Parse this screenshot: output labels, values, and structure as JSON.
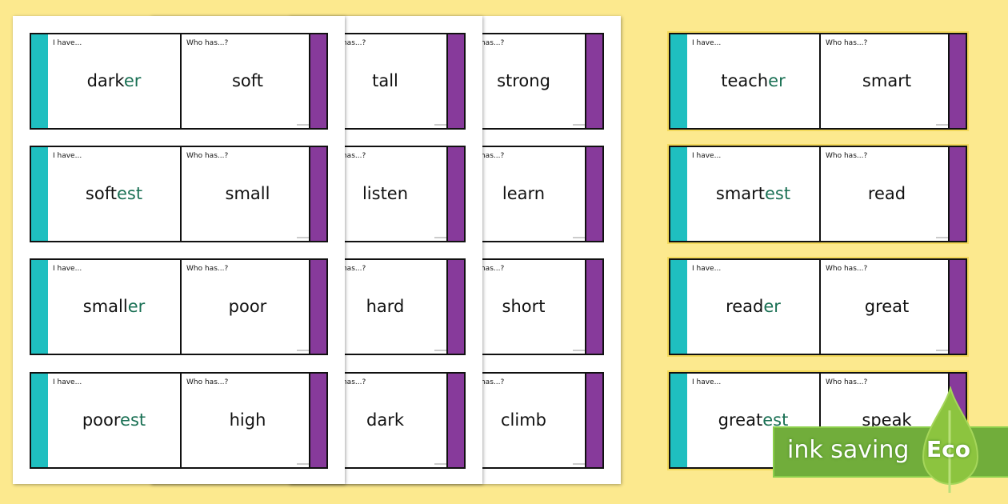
{
  "labels": {
    "i_have": "I have...",
    "who_has": "Who has...?"
  },
  "colors": {
    "background": "#fce98e",
    "teal": "#1fbfc0",
    "purple": "#873a9b",
    "suffix": "#1a7054",
    "eco_green": "#71ad3b"
  },
  "page_back2": {
    "cards": [
      {
        "who_has": "strong"
      },
      {
        "who_has": "learn"
      },
      {
        "who_has": "short"
      },
      {
        "who_has": "climb"
      }
    ]
  },
  "page_back1": {
    "cards": [
      {
        "who_has": "tall"
      },
      {
        "who_has": "listen"
      },
      {
        "who_has": "hard"
      },
      {
        "who_has": "dark"
      }
    ]
  },
  "page_front": {
    "cards": [
      {
        "base": "dark",
        "suffix": "er",
        "who_has": "soft"
      },
      {
        "base": "soft",
        "suffix": "est",
        "who_has": "small"
      },
      {
        "base": "small",
        "suffix": "er",
        "who_has": "poor"
      },
      {
        "base": "poor",
        "suffix": "est",
        "who_has": "high"
      }
    ]
  },
  "loose_cards": {
    "cards": [
      {
        "base": "teach",
        "suffix": "er",
        "who_has": "smart"
      },
      {
        "base": "smart",
        "suffix": "est",
        "who_has": "read"
      },
      {
        "base": "read",
        "suffix": "er",
        "who_has": "great"
      },
      {
        "base": "great",
        "suffix": "est",
        "who_has": "speak"
      }
    ]
  },
  "eco_badge": {
    "text": "ink saving",
    "label": "Eco"
  }
}
